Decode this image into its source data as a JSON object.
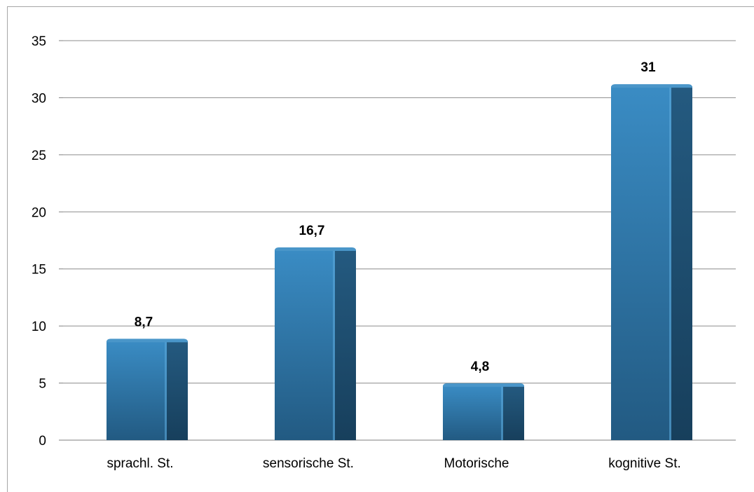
{
  "chart_data": {
    "type": "bar",
    "categories": [
      "sprachl. St.",
      "sensorische St.",
      "Motorische",
      "kognitive St."
    ],
    "values": [
      8.7,
      16.7,
      4.8,
      31
    ],
    "value_labels": [
      "8,7",
      "16,7",
      "4,8",
      "31"
    ],
    "title": "",
    "xlabel": "",
    "ylabel": "",
    "ylim": [
      0,
      35
    ],
    "yticks": [
      0,
      5,
      10,
      15,
      20,
      25,
      30,
      35
    ],
    "grid": true,
    "legend": "none",
    "style": "3d-cylinder-bar",
    "colors": {
      "bar_front": "#2f7cb0",
      "bar_side": "#1d4e72",
      "bar_top": "#4a96c9",
      "gridline": "#8c8c8c"
    }
  }
}
